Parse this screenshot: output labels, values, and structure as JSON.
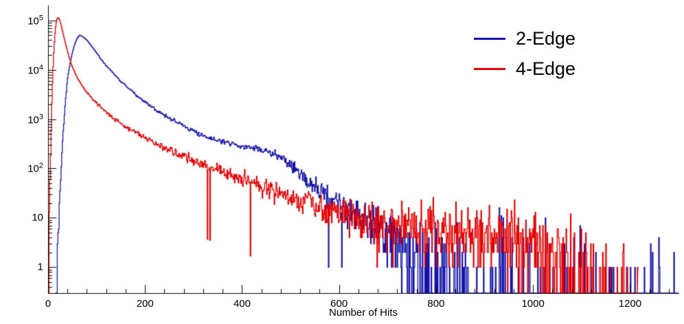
{
  "chart_data": {
    "type": "line",
    "subtype": "histogram-step-log",
    "title": "",
    "xlabel": "Number of Hits",
    "ylabel": "",
    "x_range": [
      0,
      1300
    ],
    "y_scale": "log",
    "y_range": [
      0.3,
      200000
    ],
    "grid": false,
    "axis_color": "#000000",
    "background": "#ffffff",
    "bin_width": 1.3,
    "x_ticks": {
      "major": [
        0,
        200,
        400,
        600,
        800,
        1000,
        1200
      ],
      "minor_step": 40
    },
    "y_ticks": [
      "1",
      "10",
      "10^2",
      "10^3",
      "10^4",
      "10^5"
    ],
    "legend": {
      "position": "top-right",
      "entries": [
        "2-Edge",
        "4-Edge"
      ]
    },
    "noise": {
      "seed": 1337,
      "coeff": 0.6,
      "max_sigma": 0.55,
      "quantize_below": 15,
      "dropout_below": 4,
      "dropout_scale": 0.9,
      "dropout_max": 0.85,
      "deep_dip_prob": 0.012
    },
    "series": [
      {
        "name": "2-edge",
        "label": "2-Edge",
        "color": "#1414aa",
        "x_start": 15,
        "x_end": 1300,
        "anchors": [
          [
            15,
            0.4
          ],
          [
            20,
            4
          ],
          [
            25,
            50
          ],
          [
            30,
            350
          ],
          [
            35,
            1800
          ],
          [
            40,
            6500
          ],
          [
            45,
            13000
          ],
          [
            50,
            22000
          ],
          [
            55,
            33000
          ],
          [
            60,
            43000
          ],
          [
            65,
            50000
          ],
          [
            70,
            48000
          ],
          [
            80,
            40000
          ],
          [
            90,
            30000
          ],
          [
            100,
            22000
          ],
          [
            110,
            16000
          ],
          [
            120,
            12000
          ],
          [
            135,
            8500
          ],
          [
            150,
            5800
          ],
          [
            170,
            3900
          ],
          [
            190,
            2600
          ],
          [
            210,
            1900
          ],
          [
            230,
            1400
          ],
          [
            250,
            1050
          ],
          [
            270,
            820
          ],
          [
            290,
            650
          ],
          [
            310,
            530
          ],
          [
            330,
            440
          ],
          [
            350,
            380
          ],
          [
            370,
            330
          ],
          [
            390,
            300
          ],
          [
            410,
            280
          ],
          [
            430,
            260
          ],
          [
            450,
            230
          ],
          [
            470,
            185
          ],
          [
            490,
            140
          ],
          [
            505,
            110
          ],
          [
            520,
            80
          ],
          [
            535,
            60
          ],
          [
            550,
            45
          ],
          [
            565,
            34
          ],
          [
            580,
            26
          ],
          [
            600,
            19
          ],
          [
            620,
            14
          ],
          [
            640,
            11
          ],
          [
            660,
            8.5
          ],
          [
            680,
            6.5
          ],
          [
            700,
            5
          ],
          [
            720,
            4
          ],
          [
            740,
            3.2
          ],
          [
            760,
            2.6
          ],
          [
            780,
            2.2
          ],
          [
            800,
            1.8
          ],
          [
            840,
            1.4
          ],
          [
            880,
            1.1
          ],
          [
            920,
            0.95
          ],
          [
            960,
            0.85
          ],
          [
            1000,
            0.75
          ],
          [
            1060,
            0.65
          ],
          [
            1120,
            0.6
          ],
          [
            1200,
            0.55
          ],
          [
            1300,
            0.5
          ]
        ]
      },
      {
        "name": "4-edge",
        "label": "4-Edge",
        "color": "#e60000",
        "x_start": 2,
        "x_end": 1215,
        "anchors": [
          [
            2,
            3
          ],
          [
            4,
            40
          ],
          [
            6,
            400
          ],
          [
            8,
            2500
          ],
          [
            10,
            9000
          ],
          [
            12,
            25000
          ],
          [
            14,
            50000
          ],
          [
            16,
            80000
          ],
          [
            18,
            103000
          ],
          [
            20,
            115000
          ],
          [
            22,
            112000
          ],
          [
            25,
            95000
          ],
          [
            28,
            72000
          ],
          [
            32,
            50000
          ],
          [
            36,
            34000
          ],
          [
            40,
            24000
          ],
          [
            45,
            16000
          ],
          [
            50,
            11500
          ],
          [
            55,
            8800
          ],
          [
            60,
            7000
          ],
          [
            70,
            4800
          ],
          [
            80,
            3500
          ],
          [
            90,
            2700
          ],
          [
            100,
            2100
          ],
          [
            110,
            1700
          ],
          [
            120,
            1400
          ],
          [
            135,
            1050
          ],
          [
            150,
            820
          ],
          [
            165,
            660
          ],
          [
            180,
            540
          ],
          [
            200,
            420
          ],
          [
            220,
            330
          ],
          [
            240,
            265
          ],
          [
            260,
            215
          ],
          [
            280,
            175
          ],
          [
            300,
            145
          ],
          [
            320,
            120
          ],
          [
            340,
            100
          ],
          [
            360,
            84
          ],
          [
            380,
            70
          ],
          [
            400,
            58
          ],
          [
            420,
            50
          ],
          [
            440,
            44
          ],
          [
            460,
            38
          ],
          [
            480,
            32
          ],
          [
            500,
            27
          ],
          [
            520,
            23
          ],
          [
            540,
            19
          ],
          [
            560,
            16
          ],
          [
            580,
            14
          ],
          [
            600,
            12
          ],
          [
            630,
            10
          ],
          [
            660,
            8.5
          ],
          [
            690,
            7.5
          ],
          [
            720,
            6.5
          ],
          [
            750,
            6
          ],
          [
            780,
            5.5
          ],
          [
            810,
            5
          ],
          [
            840,
            4.8
          ],
          [
            870,
            4.5
          ],
          [
            900,
            4.2
          ],
          [
            930,
            4
          ],
          [
            960,
            3.7
          ],
          [
            990,
            3.4
          ],
          [
            1020,
            3
          ],
          [
            1050,
            2.6
          ],
          [
            1080,
            2.1
          ],
          [
            1110,
            1.6
          ],
          [
            1140,
            1.1
          ],
          [
            1170,
            0.8
          ],
          [
            1210,
            0.5
          ]
        ]
      }
    ]
  }
}
